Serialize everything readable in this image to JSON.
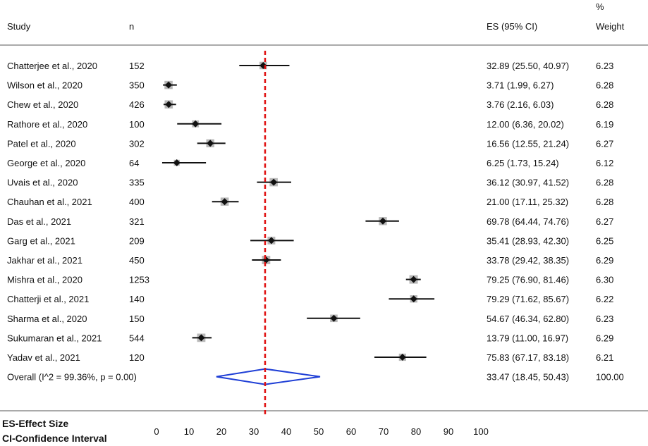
{
  "chart_data": {
    "type": "forest",
    "headers": {
      "study": "Study",
      "n": "n",
      "es": "ES (95% CI)",
      "weight_top": "%",
      "weight": "Weight"
    },
    "studies": [
      {
        "name": "Chatterjee et al., 2020",
        "n": "152",
        "es": 32.89,
        "lo": 25.5,
        "hi": 40.97,
        "es_text": "32.89 (25.50, 40.97)",
        "weight": "6.23"
      },
      {
        "name": "Wilson et al., 2020",
        "n": "350",
        "es": 3.71,
        "lo": 1.99,
        "hi": 6.27,
        "es_text": "3.71 (1.99, 6.27)",
        "weight": "6.28"
      },
      {
        "name": "Chew et al., 2020",
        "n": "426",
        "es": 3.76,
        "lo": 2.16,
        "hi": 6.03,
        "es_text": "3.76 (2.16, 6.03)",
        "weight": "6.28"
      },
      {
        "name": "Rathore et al., 2020",
        "n": "100",
        "es": 12.0,
        "lo": 6.36,
        "hi": 20.02,
        "es_text": "12.00 (6.36, 20.02)",
        "weight": "6.19"
      },
      {
        "name": "Patel et al., 2020",
        "n": "302",
        "es": 16.56,
        "lo": 12.55,
        "hi": 21.24,
        "es_text": "16.56 (12.55, 21.24)",
        "weight": "6.27"
      },
      {
        "name": "George et al., 2020",
        "n": "64",
        "es": 6.25,
        "lo": 1.73,
        "hi": 15.24,
        "es_text": "6.25 (1.73, 15.24)",
        "weight": "6.12"
      },
      {
        "name": "Uvais et al., 2020",
        "n": "335",
        "es": 36.12,
        "lo": 30.97,
        "hi": 41.52,
        "es_text": "36.12 (30.97, 41.52)",
        "weight": "6.28"
      },
      {
        "name": "Chauhan et al., 2021",
        "n": "400",
        "es": 21.0,
        "lo": 17.11,
        "hi": 25.32,
        "es_text": "21.00 (17.11, 25.32)",
        "weight": "6.28"
      },
      {
        "name": "Das et al., 2021",
        "n": "321",
        "es": 69.78,
        "lo": 64.44,
        "hi": 74.76,
        "es_text": "69.78 (64.44, 74.76)",
        "weight": "6.27"
      },
      {
        "name": "Garg et al., 2021",
        "n": "209",
        "es": 35.41,
        "lo": 28.93,
        "hi": 42.3,
        "es_text": "35.41 (28.93, 42.30)",
        "weight": "6.25"
      },
      {
        "name": "Jakhar et al., 2021",
        "n": "450",
        "es": 33.78,
        "lo": 29.42,
        "hi": 38.35,
        "es_text": "33.78 (29.42, 38.35)",
        "weight": "6.29"
      },
      {
        "name": "Mishra et al., 2020",
        "n": "1253",
        "es": 79.25,
        "lo": 76.9,
        "hi": 81.46,
        "es_text": "79.25 (76.90, 81.46)",
        "weight": "6.30"
      },
      {
        "name": "Chatterji et al., 2021",
        "n": "140",
        "es": 79.29,
        "lo": 71.62,
        "hi": 85.67,
        "es_text": "79.29 (71.62, 85.67)",
        "weight": "6.22"
      },
      {
        "name": "Sharma et al., 2020",
        "n": "150",
        "es": 54.67,
        "lo": 46.34,
        "hi": 62.8,
        "es_text": "54.67 (46.34, 62.80)",
        "weight": "6.23"
      },
      {
        "name": "Sukumaran et al., 2021",
        "n": "544",
        "es": 13.79,
        "lo": 11.0,
        "hi": 16.97,
        "es_text": "13.79 (11.00, 16.97)",
        "weight": "6.29"
      },
      {
        "name": "Yadav et al., 2021",
        "n": "120",
        "es": 75.83,
        "lo": 67.17,
        "hi": 83.18,
        "es_text": "75.83 (67.17, 83.18)",
        "weight": "6.21"
      }
    ],
    "overall": {
      "label": "Overall  (I^2 = 99.36%, p = 0.00)",
      "es": 33.47,
      "lo": 18.45,
      "hi": 50.43,
      "es_text": "33.47 (18.45, 50.43)",
      "weight": "100.00"
    },
    "xaxis": {
      "ticks": [
        0,
        10,
        20,
        30,
        40,
        50,
        60,
        70,
        80,
        90,
        100
      ],
      "range": [
        0,
        100
      ]
    },
    "reference_line": 33.47,
    "footnotes": [
      "ES-Effect Size",
      "CI-Confidence Interval"
    ],
    "colors": {
      "point": "#111111",
      "ci": "#111111",
      "diamond": "#1f3fd6",
      "reference": "#e01010",
      "separator": "#555555"
    }
  }
}
